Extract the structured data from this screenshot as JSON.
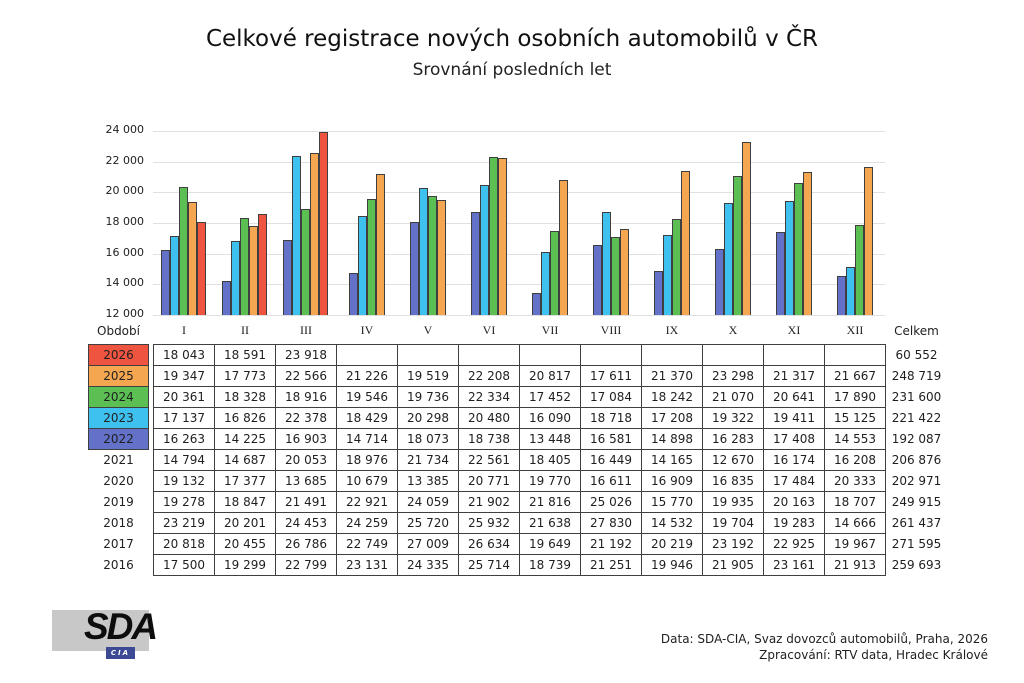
{
  "title": "Celkové registrace nových osobních automobilů v ČR",
  "subtitle": "Srovnání posledních let",
  "axis": {
    "period_label": "Období",
    "total_label": "Celkem"
  },
  "colors": {
    "y2026": "#ee5440",
    "y2025": "#f4a750",
    "y2024": "#5bbf54",
    "y2023": "#3fc1f0",
    "y2022": "#6372c8",
    "bar_border": "#3f3f3f",
    "grid": "#e0e0e0",
    "table_border": "#3f3f3f",
    "logo_gray": "#c8c8c8",
    "logo_navy": "#3c4a95"
  },
  "chart_data": {
    "type": "bar",
    "x": [
      "I",
      "II",
      "III",
      "IV",
      "V",
      "VI",
      "VII",
      "VIII",
      "IX",
      "X",
      "XI",
      "XII"
    ],
    "ylim": [
      12000,
      24000
    ],
    "ytick_step": 2000,
    "ytick_labels": [
      "24 000",
      "22 000",
      "20 000",
      "18 000",
      "16 000",
      "14 000",
      "12 000"
    ],
    "grid": true,
    "legend_position": "none",
    "title": "Celkové registrace nových osobních automobilů v ČR",
    "xlabel": "Období",
    "ylabel": "",
    "series": [
      {
        "name": "2022",
        "color": "#6372c8",
        "values": [
          16263,
          14225,
          16903,
          14714,
          18073,
          18738,
          13448,
          16581,
          14898,
          16283,
          17408,
          14553
        ]
      },
      {
        "name": "2023",
        "color": "#3fc1f0",
        "values": [
          17137,
          16826,
          22378,
          18429,
          20298,
          20480,
          16090,
          18718,
          17208,
          19322,
          19411,
          15125
        ]
      },
      {
        "name": "2024",
        "color": "#5bbf54",
        "values": [
          20361,
          18328,
          18916,
          19546,
          19736,
          22334,
          17452,
          17084,
          18242,
          21070,
          20641,
          17890
        ]
      },
      {
        "name": "2025",
        "color": "#f4a750",
        "values": [
          19347,
          17773,
          22566,
          21226,
          19519,
          22208,
          20817,
          17611,
          21370,
          23298,
          21317,
          21667
        ]
      },
      {
        "name": "2026",
        "color": "#ee5440",
        "values": [
          18043,
          18591,
          23918,
          null,
          null,
          null,
          null,
          null,
          null,
          null,
          null,
          null
        ]
      }
    ]
  },
  "table": {
    "rows": [
      {
        "year": "2026",
        "color": "#ee5440",
        "values": [
          "18 043",
          "18 591",
          "23 918",
          "",
          "",
          "",
          "",
          "",
          "",
          "",
          "",
          ""
        ],
        "total": "60 552"
      },
      {
        "year": "2025",
        "color": "#f4a750",
        "values": [
          "19 347",
          "17 773",
          "22 566",
          "21 226",
          "19 519",
          "22 208",
          "20 817",
          "17 611",
          "21 370",
          "23 298",
          "21 317",
          "21 667"
        ],
        "total": "248 719"
      },
      {
        "year": "2024",
        "color": "#5bbf54",
        "values": [
          "20 361",
          "18 328",
          "18 916",
          "19 546",
          "19 736",
          "22 334",
          "17 452",
          "17 084",
          "18 242",
          "21 070",
          "20 641",
          "17 890"
        ],
        "total": "231 600"
      },
      {
        "year": "2023",
        "color": "#3fc1f0",
        "values": [
          "17 137",
          "16 826",
          "22 378",
          "18 429",
          "20 298",
          "20 480",
          "16 090",
          "18 718",
          "17 208",
          "19 322",
          "19 411",
          "15 125"
        ],
        "total": "221 422"
      },
      {
        "year": "2022",
        "color": "#6372c8",
        "values": [
          "16 263",
          "14 225",
          "16 903",
          "14 714",
          "18 073",
          "18 738",
          "13 448",
          "16 581",
          "14 898",
          "16 283",
          "17 408",
          "14 553"
        ],
        "total": "192 087"
      },
      {
        "year": "2021",
        "color": null,
        "values": [
          "14 794",
          "14 687",
          "20 053",
          "18 976",
          "21 734",
          "22 561",
          "18 405",
          "16 449",
          "14 165",
          "12 670",
          "16 174",
          "16 208"
        ],
        "total": "206 876"
      },
      {
        "year": "2020",
        "color": null,
        "values": [
          "19 132",
          "17 377",
          "13 685",
          "10 679",
          "13 385",
          "20 771",
          "19 770",
          "16 611",
          "16 909",
          "16 835",
          "17 484",
          "20 333"
        ],
        "total": "202 971"
      },
      {
        "year": "2019",
        "color": null,
        "values": [
          "19 278",
          "18 847",
          "21 491",
          "22 921",
          "24 059",
          "21 902",
          "21 816",
          "25 026",
          "15 770",
          "19 935",
          "20 163",
          "18 707"
        ],
        "total": "249 915"
      },
      {
        "year": "2018",
        "color": null,
        "values": [
          "23 219",
          "20 201",
          "24 453",
          "24 259",
          "25 720",
          "25 932",
          "21 638",
          "27 830",
          "14 532",
          "19 704",
          "19 283",
          "14 666"
        ],
        "total": "261 437"
      },
      {
        "year": "2017",
        "color": null,
        "values": [
          "20 818",
          "20 455",
          "26 786",
          "22 749",
          "27 009",
          "26 634",
          "19 649",
          "21 192",
          "20 219",
          "23 192",
          "22 925",
          "19 967"
        ],
        "total": "271 595"
      },
      {
        "year": "2016",
        "color": null,
        "values": [
          "17 500",
          "19 299",
          "22 799",
          "23 131",
          "24 335",
          "25 714",
          "18 739",
          "21 251",
          "19 946",
          "21 905",
          "23 161",
          "21 913"
        ],
        "total": "259 693"
      }
    ]
  },
  "footer": {
    "logo_main": "SDA",
    "logo_sub": "CIA",
    "source_line1": "Data: SDA-CIA, Svaz dovozců automobilů, Praha, 2026",
    "source_line2": "Zpracování: RTV data, Hradec Králové"
  }
}
